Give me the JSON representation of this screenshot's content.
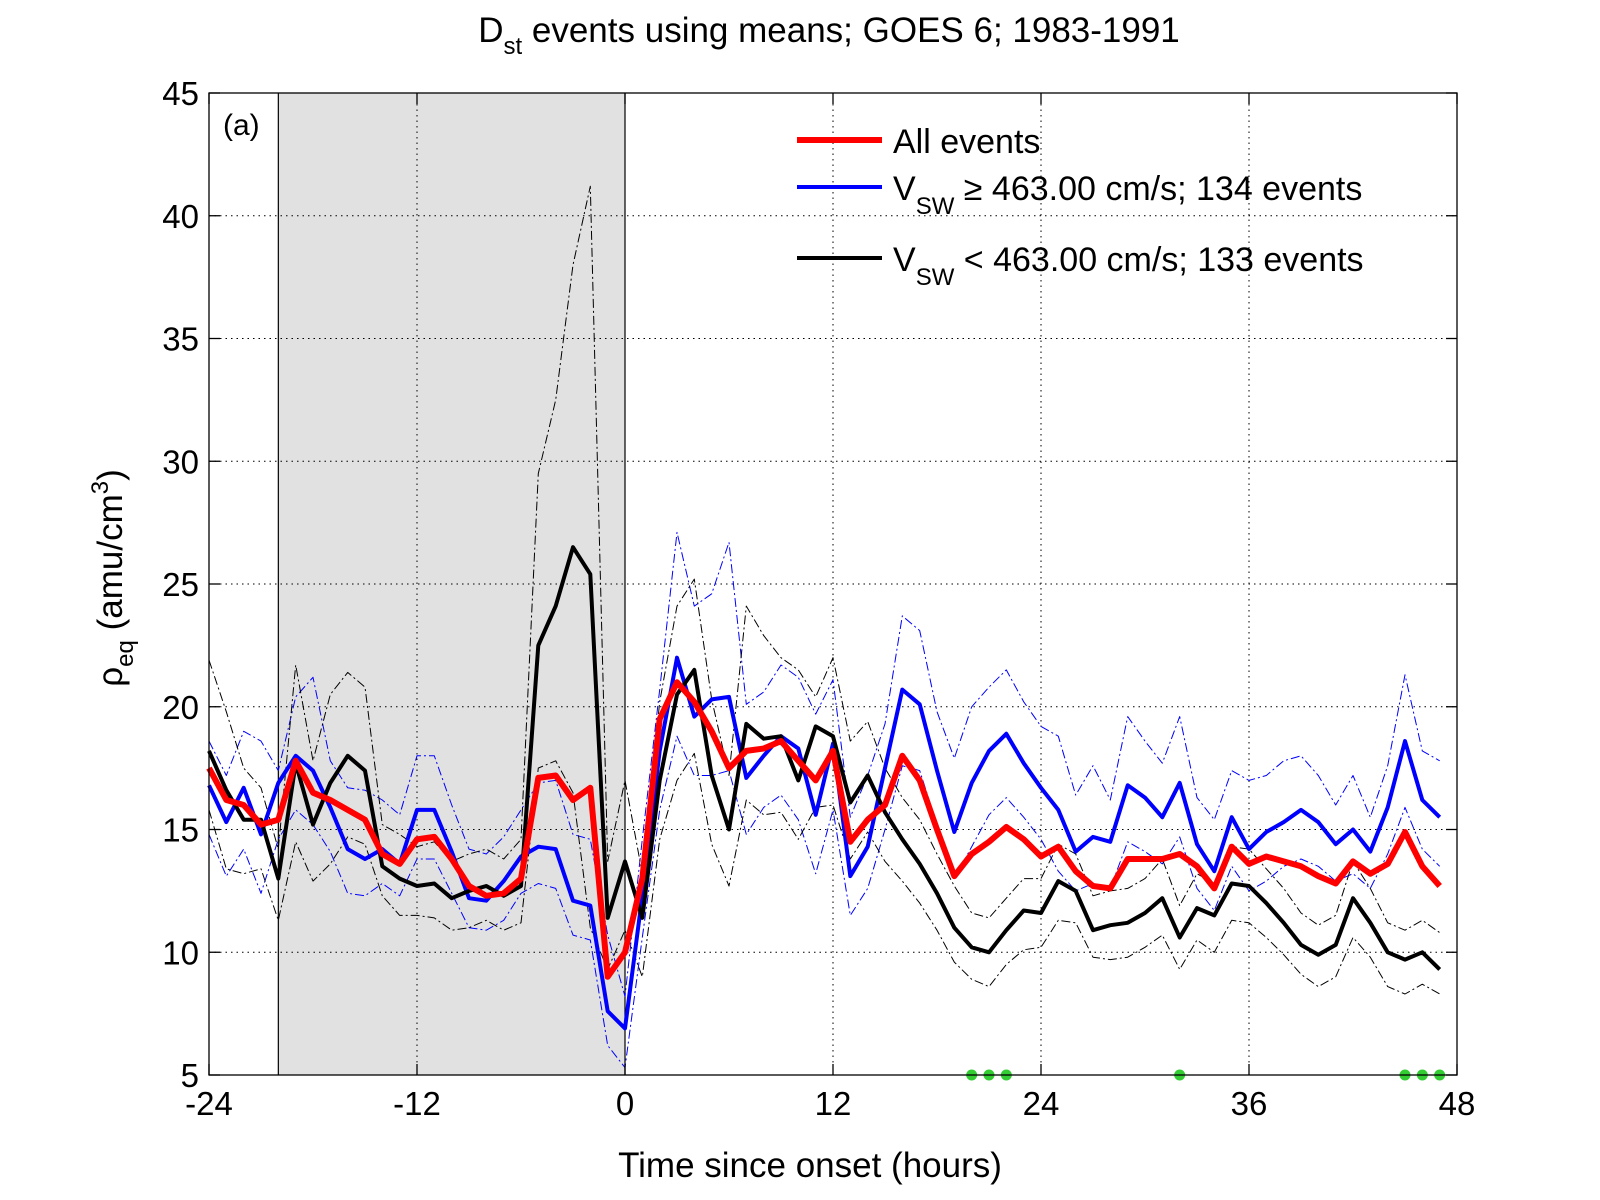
{
  "chart_data": {
    "type": "line",
    "title_main": "D",
    "title_sub": "st",
    "title_rest": " events using means; GOES 6; 1983-1991",
    "xlabel": "Time since onset (hours)",
    "ylabel_rho": "ρ",
    "ylabel_sub": "eq",
    "ylabel_units": " (amu/cm",
    "ylabel_sup": "3",
    "ylabel_close": ")",
    "panel_label": "(a)",
    "xlim": [
      -24,
      48
    ],
    "ylim": [
      5,
      45
    ],
    "xticks": [
      -24,
      -12,
      0,
      12,
      24,
      36,
      48
    ],
    "yticks": [
      5,
      10,
      15,
      20,
      25,
      30,
      35,
      40,
      45
    ],
    "grid": true,
    "shaded_region": [
      -20,
      0
    ],
    "legend_position": "top-right",
    "legend": [
      {
        "color": "#ff0000",
        "width": 6,
        "text_main": "All events",
        "text_sub": "",
        "text_rest": ""
      },
      {
        "color": "#0000ff",
        "width": 4,
        "text_main": "V",
        "text_sub": "SW",
        "text_rest": " ≥ 463.00 cm/s; 134 events"
      },
      {
        "color": "#000000",
        "width": 4,
        "text_main": "V",
        "text_sub": "SW",
        "text_rest": " < 463.00 cm/s; 133 events"
      }
    ],
    "x": [
      -24,
      -23,
      -22,
      -21,
      -20,
      -19,
      -18,
      -17,
      -16,
      -15,
      -14,
      -13,
      -12,
      -11,
      -10,
      -9,
      -8,
      -7,
      -6,
      -5,
      -4,
      -3,
      -2,
      -1,
      0,
      1,
      2,
      3,
      4,
      5,
      6,
      7,
      8,
      9,
      10,
      11,
      12,
      13,
      14,
      15,
      16,
      17,
      18,
      19,
      20,
      21,
      22,
      23,
      24,
      25,
      26,
      27,
      28,
      29,
      30,
      31,
      32,
      33,
      34,
      35,
      36,
      37,
      38,
      39,
      40,
      41,
      42,
      43,
      44,
      45,
      46,
      47
    ],
    "series": [
      {
        "name": "All events",
        "color": "#ff0000",
        "width": 6,
        "style": "solid",
        "values": [
          17.5,
          16.2,
          16.0,
          15.2,
          15.4,
          17.8,
          16.5,
          16.2,
          15.8,
          15.4,
          14.0,
          13.6,
          14.6,
          14.7,
          13.8,
          12.7,
          12.3,
          12.4,
          13.0,
          17.1,
          17.2,
          16.2,
          16.7,
          9.0,
          10.0,
          13.0,
          19.5,
          21.0,
          20.2,
          19.0,
          17.5,
          18.2,
          18.3,
          18.6,
          17.8,
          17.0,
          18.2,
          14.5,
          15.4,
          16.0,
          18.0,
          17.0,
          15.0,
          13.1,
          14.0,
          14.5,
          15.1,
          14.6,
          13.9,
          14.3,
          13.3,
          12.7,
          12.6,
          13.8,
          13.8,
          13.8,
          14.0,
          13.5,
          12.6,
          14.3,
          13.6,
          13.9,
          13.7,
          13.5,
          13.1,
          12.8,
          13.7,
          13.2,
          13.6,
          14.9,
          13.5,
          12.7
        ]
      },
      {
        "name": "V_SW ≥ 463.00 cm/s; 134 events",
        "color": "#0000ff",
        "width": 4,
        "style": "solid",
        "values": [
          16.8,
          15.3,
          16.7,
          14.8,
          16.9,
          18.0,
          17.4,
          15.9,
          14.2,
          13.8,
          14.2,
          13.6,
          15.8,
          15.8,
          14.1,
          12.2,
          12.1,
          12.9,
          13.9,
          14.3,
          14.2,
          12.1,
          11.9,
          7.6,
          6.9,
          12.3,
          18.2,
          22.0,
          19.6,
          20.3,
          20.4,
          17.1,
          18.0,
          18.8,
          18.3,
          15.6,
          18.5,
          13.1,
          14.3,
          17.5,
          20.7,
          20.1,
          17.4,
          14.9,
          16.9,
          18.2,
          18.9,
          17.7,
          16.7,
          15.8,
          14.1,
          14.7,
          14.5,
          16.8,
          16.3,
          15.5,
          16.9,
          14.4,
          13.3,
          15.5,
          14.2,
          14.9,
          15.3,
          15.8,
          15.3,
          14.4,
          15.0,
          14.1,
          15.9,
          18.6,
          16.2,
          15.5
        ]
      },
      {
        "name": "V_SW < 463.00 cm/s; 133 events",
        "color": "#000000",
        "width": 4,
        "style": "solid",
        "values": [
          18.2,
          16.6,
          15.4,
          15.4,
          13.0,
          17.7,
          15.2,
          16.9,
          18.0,
          17.4,
          13.5,
          13.0,
          12.7,
          12.8,
          12.2,
          12.5,
          12.7,
          12.3,
          12.7,
          22.5,
          24.1,
          26.5,
          25.4,
          11.4,
          13.7,
          11.4,
          17.0,
          20.5,
          21.5,
          17.2,
          15.0,
          19.3,
          18.7,
          18.8,
          17.0,
          19.2,
          18.8,
          16.1,
          17.2,
          15.7,
          14.6,
          13.6,
          12.4,
          11.0,
          10.2,
          10.0,
          10.9,
          11.7,
          11.6,
          12.9,
          12.5,
          10.9,
          11.1,
          11.2,
          11.6,
          12.2,
          10.6,
          11.8,
          11.5,
          12.8,
          12.7,
          12.0,
          11.2,
          10.3,
          9.9,
          10.3,
          12.2,
          11.2,
          10.0,
          9.7,
          10.0,
          9.3
        ]
      },
      {
        "name": "",
        "color": "#0000ff",
        "width": 1,
        "style": "dashdot",
        "values": [
          18.6,
          17.2,
          19.0,
          18.6,
          17.4,
          20.4,
          21.2,
          17.8,
          16.7,
          16.6,
          16.2,
          15.6,
          18.0,
          18.0,
          16.0,
          14.2,
          14.0,
          14.7,
          15.8,
          16.9,
          17.0,
          14.8,
          14.6,
          10.7,
          8.2,
          14.6,
          20.7,
          27.1,
          24.1,
          24.6,
          26.7,
          20.1,
          20.6,
          21.7,
          21.2,
          19.7,
          21.1,
          15.5,
          17.2,
          19.3,
          23.7,
          23.1,
          19.8,
          17.9,
          20.0,
          20.8,
          21.5,
          20.2,
          19.2,
          18.8,
          16.4,
          17.6,
          16.2,
          19.6,
          18.6,
          17.7,
          19.6,
          16.3,
          15.4,
          17.4,
          17.0,
          17.2,
          17.8,
          18.0,
          17.2,
          16.0,
          17.2,
          15.5,
          17.6,
          21.3,
          18.2,
          17.8
        ]
      },
      {
        "name": "",
        "color": "#0000ff",
        "width": 1,
        "style": "dashdot",
        "values": [
          14.8,
          13.1,
          14.2,
          12.4,
          14.6,
          15.8,
          15.2,
          14.1,
          12.4,
          12.3,
          12.8,
          12.3,
          13.8,
          13.8,
          12.4,
          11.0,
          10.9,
          11.3,
          12.4,
          12.8,
          12.6,
          10.7,
          10.5,
          6.2,
          5.3,
          10.6,
          15.8,
          18.8,
          17.2,
          17.2,
          17.4,
          14.8,
          15.9,
          16.4,
          15.4,
          13.2,
          15.8,
          11.5,
          12.6,
          15.0,
          17.6,
          17.4,
          15.2,
          13.0,
          14.3,
          15.6,
          16.3,
          15.5,
          14.6,
          13.3,
          12.5,
          12.8,
          12.6,
          14.5,
          14.1,
          13.6,
          14.7,
          12.6,
          11.7,
          13.5,
          12.5,
          12.9,
          13.5,
          13.8,
          13.5,
          12.9,
          13.2,
          12.6,
          14.0,
          15.9,
          14.2,
          13.5
        ]
      },
      {
        "name": "",
        "color": "#000000",
        "width": 1,
        "style": "dashdot",
        "values": [
          21.9,
          19.8,
          17.5,
          16.7,
          14.2,
          21.7,
          17.8,
          20.5,
          21.4,
          20.8,
          15.2,
          14.8,
          14.3,
          14.5,
          13.7,
          14.0,
          14.2,
          13.8,
          14.6,
          29.5,
          32.5,
          38.0,
          41.2,
          13.7,
          17.0,
          13.2,
          20.2,
          24.1,
          25.2,
          20.3,
          17.2,
          24.1,
          22.9,
          22.0,
          21.5,
          20.4,
          22.0,
          18.6,
          19.4,
          17.5,
          16.3,
          15.4,
          14.0,
          12.7,
          11.6,
          11.4,
          12.2,
          13.0,
          13.0,
          14.4,
          14.0,
          12.3,
          12.5,
          12.6,
          13.0,
          13.8,
          11.9,
          13.2,
          12.8,
          14.3,
          14.2,
          13.4,
          12.6,
          11.6,
          11.1,
          11.5,
          13.7,
          12.6,
          11.2,
          10.9,
          11.3,
          10.8
        ]
      },
      {
        "name": "",
        "color": "#000000",
        "width": 1,
        "style": "dashdot",
        "values": [
          15.8,
          13.4,
          13.2,
          13.4,
          11.3,
          14.5,
          12.9,
          13.6,
          14.7,
          14.4,
          12.3,
          11.5,
          11.5,
          11.4,
          10.9,
          11.0,
          11.3,
          10.9,
          11.2,
          17.5,
          17.8,
          16.5,
          11.0,
          9.3,
          10.9,
          9.0,
          14.6,
          17.0,
          18.1,
          14.4,
          12.7,
          16.2,
          15.6,
          15.7,
          14.6,
          15.9,
          16.0,
          13.8,
          14.9,
          13.7,
          12.9,
          12.0,
          10.9,
          9.6,
          8.9,
          8.6,
          9.5,
          10.1,
          10.2,
          11.3,
          11.2,
          9.8,
          9.7,
          9.8,
          10.2,
          10.7,
          9.3,
          10.5,
          10.0,
          11.3,
          11.2,
          10.6,
          9.9,
          9.1,
          8.6,
          9.0,
          10.6,
          9.8,
          8.6,
          8.3,
          8.7,
          8.3
        ]
      }
    ],
    "markers": {
      "color": "#33cc33",
      "y": 5,
      "x": [
        20,
        21,
        22,
        32,
        45,
        46,
        47
      ]
    }
  }
}
